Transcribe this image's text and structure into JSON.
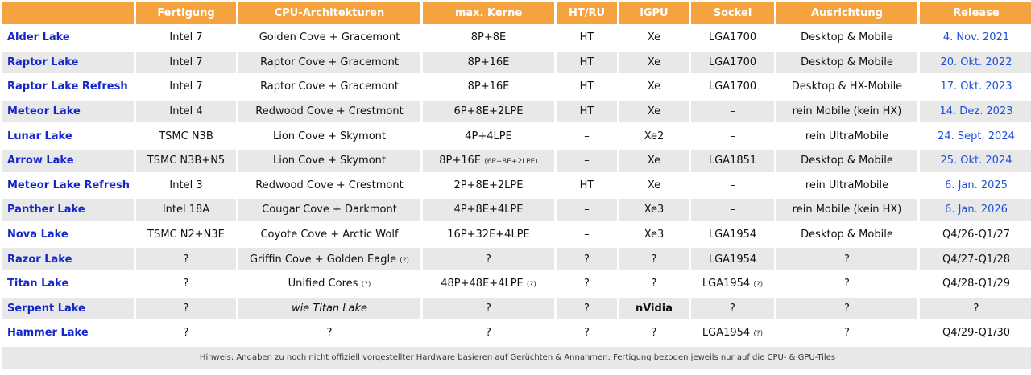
{
  "header": [
    "",
    "Fertigung",
    "CPU-Architekturen",
    "max. Kerne",
    "HT/RU",
    "iGPU",
    "Sockel",
    "Ausrichtung",
    "Release"
  ],
  "rows": [
    {
      "name": "Alder Lake",
      "fab": "Intel 7",
      "arch": "Golden Cove + Gracemont",
      "arch_q": "",
      "cores": "8P+8E",
      "cores_small": "",
      "ht": "HT",
      "igpu": "Xe",
      "socket": "LGA1700",
      "socket_q": "",
      "target": "Desktop & Mobile",
      "release": "4. Nov. 2021",
      "release_link": true
    },
    {
      "name": "Raptor Lake",
      "fab": "Intel 7",
      "arch": "Raptor Cove + Gracemont",
      "arch_q": "",
      "cores": "8P+16E",
      "cores_small": "",
      "ht": "HT",
      "igpu": "Xe",
      "socket": "LGA1700",
      "socket_q": "",
      "target": "Desktop & Mobile",
      "release": "20. Okt. 2022",
      "release_link": true
    },
    {
      "name": "Raptor Lake Refresh",
      "fab": "Intel 7",
      "arch": "Raptor Cove + Gracemont",
      "arch_q": "",
      "cores": "8P+16E",
      "cores_small": "",
      "ht": "HT",
      "igpu": "Xe",
      "socket": "LGA1700",
      "socket_q": "",
      "target": "Desktop & HX-Mobile",
      "release": "17. Okt. 2023",
      "release_link": true
    },
    {
      "name": "Meteor Lake",
      "fab": "Intel 4",
      "arch": "Redwood Cove + Crestmont",
      "arch_q": "",
      "cores": "6P+8E+2LPE",
      "cores_small": "",
      "ht": "HT",
      "igpu": "Xe",
      "socket": "–",
      "socket_q": "",
      "target": "rein Mobile (kein HX)",
      "release": "14. Dez. 2023",
      "release_link": true
    },
    {
      "name": "Lunar Lake",
      "fab": "TSMC N3B",
      "arch": "Lion Cove + Skymont",
      "arch_q": "",
      "cores": "4P+4LPE",
      "cores_small": "",
      "ht": "–",
      "igpu": "Xe2",
      "socket": "–",
      "socket_q": "",
      "target": "rein UltraMobile",
      "release": "24. Sept. 2024",
      "release_link": true
    },
    {
      "name": "Arrow Lake",
      "fab": "TSMC N3B+N5",
      "arch": "Lion Cove + Skymont",
      "arch_q": "",
      "cores": "8P+16E",
      "cores_small": "(6P+8E+2LPE)",
      "ht": "–",
      "igpu": "Xe",
      "socket": "LGA1851",
      "socket_q": "",
      "target": "Desktop & Mobile",
      "release": "25. Okt. 2024",
      "release_link": true
    },
    {
      "name": "Meteor Lake Refresh",
      "fab": "Intel 3",
      "arch": "Redwood Cove + Crestmont",
      "arch_q": "",
      "cores": "2P+8E+2LPE",
      "cores_small": "",
      "ht": "HT",
      "igpu": "Xe",
      "socket": "–",
      "socket_q": "",
      "target": "rein UltraMobile",
      "release": "6. Jan. 2025",
      "release_link": true
    },
    {
      "name": "Panther Lake",
      "fab": "Intel 18A",
      "arch": "Cougar Cove + Darkmont",
      "arch_q": "",
      "cores": "4P+8E+4LPE",
      "cores_small": "",
      "ht": "–",
      "igpu": "Xe3",
      "socket": "–",
      "socket_q": "",
      "target": "rein Mobile (kein HX)",
      "release": "6. Jan. 2026",
      "release_link": true
    },
    {
      "name": "Nova Lake",
      "fab": "TSMC N2+N3E",
      "arch": "Coyote Cove + Arctic Wolf",
      "arch_q": "",
      "cores": "16P+32E+4LPE",
      "cores_small": "",
      "ht": "–",
      "igpu": "Xe3",
      "socket": "LGA1954",
      "socket_q": "",
      "target": "Desktop & Mobile",
      "release": "Q4/26-Q1/27",
      "release_link": false
    },
    {
      "name": "Razor Lake",
      "fab": "?",
      "arch": "Griffin Cove + Golden Eagle",
      "arch_q": "(?)",
      "cores": "?",
      "cores_small": "",
      "ht": "?",
      "igpu": "?",
      "socket": "LGA1954",
      "socket_q": "",
      "target": "?",
      "release": "Q4/27-Q1/28",
      "release_link": false
    },
    {
      "name": "Titan Lake",
      "fab": "?",
      "arch": "Unified Cores",
      "arch_q": "(?)",
      "cores": "48P+48E+4LPE",
      "cores_small": "(?)",
      "ht": "?",
      "igpu": "?",
      "socket": "LGA1954",
      "socket_q": "(?)",
      "target": "?",
      "release": "Q4/28-Q1/29",
      "release_link": false
    },
    {
      "name": "Serpent Lake",
      "fab": "?",
      "arch": "wie Titan Lake",
      "arch_q": "",
      "arch_italic": true,
      "cores": "?",
      "cores_small": "",
      "ht": "?",
      "igpu": "nVidia",
      "igpu_bold": true,
      "socket": "?",
      "socket_q": "",
      "target": "?",
      "release": "?",
      "release_link": false
    },
    {
      "name": "Hammer Lake",
      "fab": "?",
      "arch": "?",
      "arch_q": "",
      "cores": "?",
      "cores_small": "",
      "ht": "?",
      "igpu": "?",
      "socket": "LGA1954",
      "socket_q": "(?)",
      "target": "?",
      "release": "Q4/29-Q1/30",
      "release_link": false
    }
  ],
  "note": "Hinweis: Angaben zu noch nicht offiziell vorgestellter Hardware basieren auf Gerüchten & Annahmen: Fertigung bezogen jeweils nur auf die CPU- & GPU-Tiles",
  "colors": {
    "header_bg": "#f5a33f",
    "name_blue": "#1527c9",
    "date_blue": "#1f4fd6",
    "stripe": "#e8e8e8"
  }
}
